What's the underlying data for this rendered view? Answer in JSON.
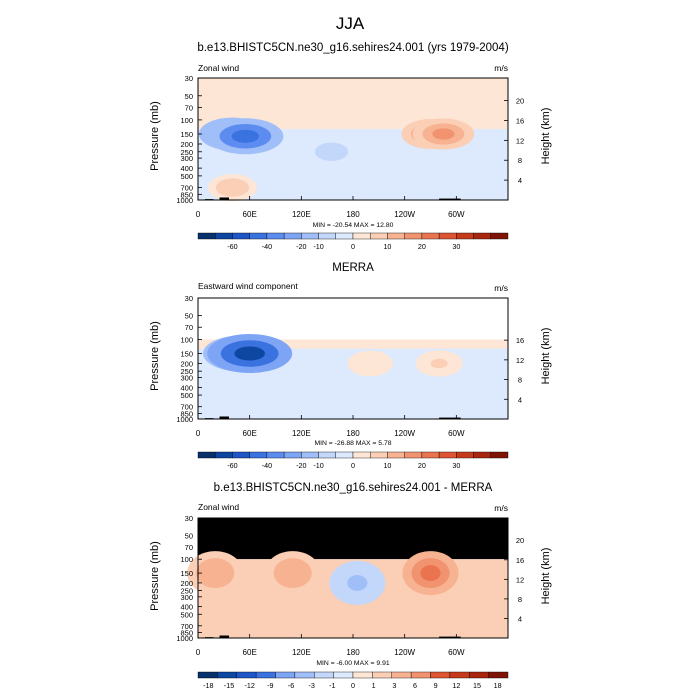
{
  "title": "JJA",
  "chart_data": [
    {
      "type": "heatmap",
      "title": "b.e13.BHISTC5CN.ne30_g16.sehires24.001 (yrs 1979-2004)",
      "left_label": "Zonal wind",
      "units": "m/s",
      "ylabel": "Pressure (mb)",
      "ylabel_right": "Height (km)",
      "x_ticks": [
        "0",
        "60E",
        "120E",
        "180",
        "120W",
        "60W"
      ],
      "y_ticks": [
        "30",
        "50",
        "70",
        "100",
        "150",
        "200",
        "250",
        "300",
        "400",
        "500",
        "700",
        "850",
        "1000"
      ],
      "y_ticks_right": [
        "20",
        "16",
        "12",
        "8",
        "4"
      ],
      "ylim": [
        1000,
        30
      ],
      "stats": "MIN = -20.54  MAX = 12.80",
      "colorbar_labels": [
        "-60",
        "-40",
        "-20",
        "-10",
        "0",
        "10",
        "20",
        "30"
      ],
      "regions": [
        {
          "x": 40,
          "p": 150,
          "v": -15
        },
        {
          "x": 55,
          "p": 160,
          "v": -20
        },
        {
          "x": 155,
          "p": 250,
          "v": -5
        },
        {
          "x": 270,
          "p": 150,
          "v": 10
        },
        {
          "x": 285,
          "p": 150,
          "v": 12
        },
        {
          "x": 40,
          "p": 700,
          "v": 5
        }
      ]
    },
    {
      "type": "heatmap",
      "title": "MERRA",
      "left_label": "Eastward wind component",
      "units": "m/s",
      "ylabel": "Pressure (mb)",
      "ylabel_right": "Height (km)",
      "x_ticks": [
        "0",
        "60E",
        "120E",
        "180",
        "120W",
        "60W"
      ],
      "y_ticks": [
        "30",
        "50",
        "70",
        "100",
        "150",
        "200",
        "250",
        "300",
        "400",
        "500",
        "700",
        "850",
        "1000"
      ],
      "y_ticks_right": [
        "16",
        "12",
        "8",
        "4"
      ],
      "ylim": [
        1000,
        30
      ],
      "stats": "MIN = -26.88  MAX =  5.78",
      "colorbar_labels": [
        "-60",
        "-40",
        "-20",
        "-10",
        "0",
        "10",
        "20",
        "30"
      ],
      "regions": [
        {
          "x": 50,
          "p": 150,
          "v": -20
        },
        {
          "x": 60,
          "p": 150,
          "v": -25
        },
        {
          "x": 200,
          "p": 200,
          "v": 3
        },
        {
          "x": 280,
          "p": 200,
          "v": 4
        }
      ]
    },
    {
      "type": "heatmap",
      "title": "b.e13.BHISTC5CN.ne30_g16.sehires24.001 - MERRA",
      "left_label": "Zonal wind",
      "units": "m/s",
      "ylabel": "Pressure (mb)",
      "ylabel_right": "Height (km)",
      "x_ticks": [
        "0",
        "60E",
        "120E",
        "180",
        "120W",
        "60W"
      ],
      "y_ticks": [
        "30",
        "50",
        "70",
        "100",
        "150",
        "200",
        "250",
        "300",
        "400",
        "500",
        "700",
        "850",
        "1000"
      ],
      "y_ticks_right": [
        "20",
        "16",
        "12",
        "8",
        "4"
      ],
      "ylim": [
        1000,
        30
      ],
      "stats": "MIN = -6.00  MAX =  9.91",
      "colorbar_labels": [
        "-18",
        "-15",
        "-12",
        "-9",
        "-6",
        "-3",
        "-1",
        "0",
        "1",
        "3",
        "6",
        "9",
        "12",
        "15",
        "18"
      ],
      "regions": [
        {
          "x": 185,
          "p": 200,
          "v": -5
        },
        {
          "x": 270,
          "p": 150,
          "v": 9
        },
        {
          "x": 20,
          "p": 150,
          "v": 6
        },
        {
          "x": 110,
          "p": 150,
          "v": 6
        }
      ]
    }
  ]
}
